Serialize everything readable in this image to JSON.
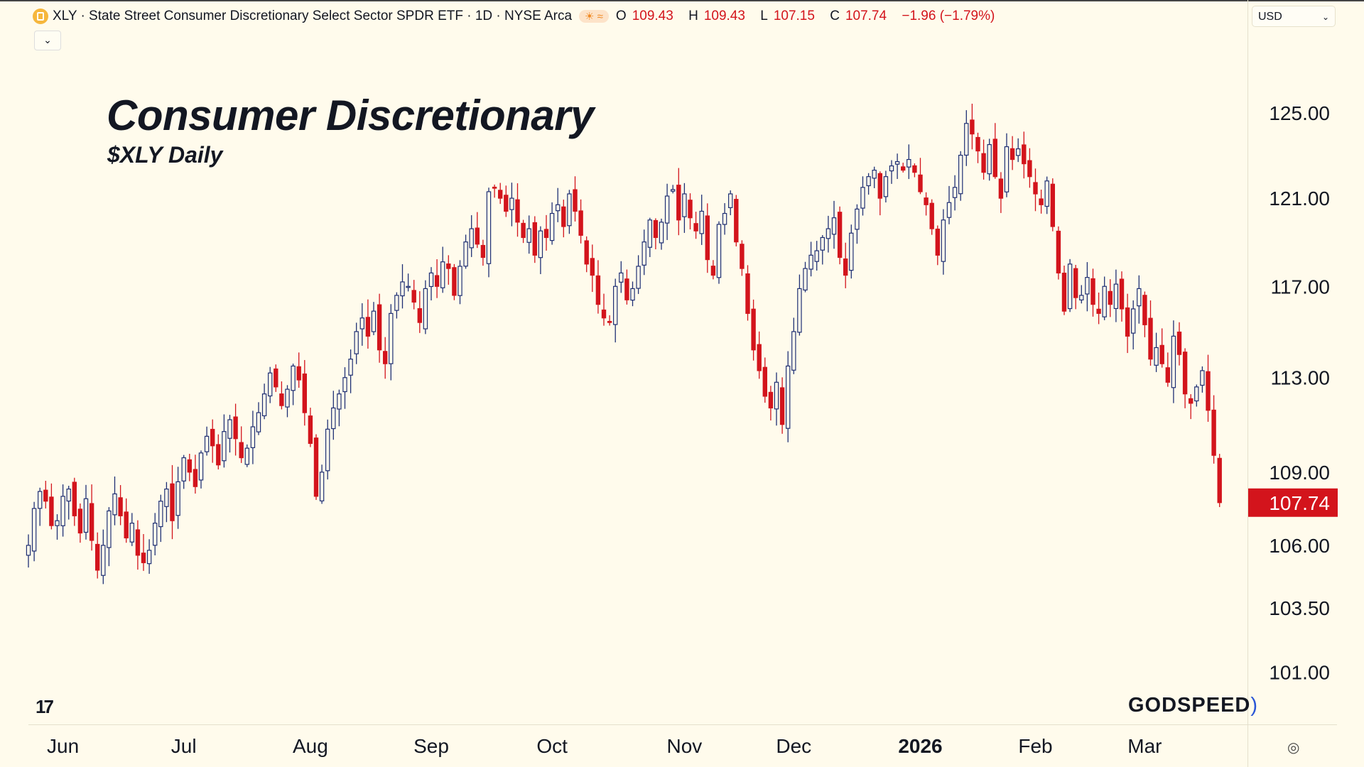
{
  "header": {
    "symbol_line": "XLY · State Street Consumer Discretionary Select Sector SPDR ETF · 1D · NYSE Arca",
    "market_status_icons": "☀ ≈",
    "open_label": "O",
    "open": "109.43",
    "high_label": "H",
    "high": "109.43",
    "low_label": "L",
    "low": "107.15",
    "close_label": "C",
    "close": "107.74",
    "change": "−1.96 (−1.79%)",
    "collapse_icon": "⌄",
    "currency": "USD",
    "currency_chevron": "⌄"
  },
  "overlay": {
    "title": "Consumer Discretionary",
    "subtitle": "$XLY Daily",
    "tv_logo": "17",
    "watermark": "GODSPEED",
    "watermark_arc": ")"
  },
  "settings_icon": "◎",
  "colors": {
    "up": "#1e2f74",
    "down": "#d3141c",
    "background": "#fffbec",
    "last_price_bg": "#d3141c"
  },
  "chart_data": {
    "type": "candlestick",
    "title": "Consumer Discretionary",
    "subtitle": "$XLY Daily",
    "scale": "log",
    "ylim": [
      99.5,
      128
    ],
    "price_ticks": [
      "125.00",
      "121.00",
      "117.00",
      "113.00",
      "109.00",
      "106.00",
      "103.50",
      "101.00"
    ],
    "last_price": "107.74",
    "month_labels": [
      {
        "label": "Jun",
        "index": 6
      },
      {
        "label": "Jul",
        "index": 27
      },
      {
        "label": "Aug",
        "index": 49
      },
      {
        "label": "Sep",
        "index": 70
      },
      {
        "label": "Oct",
        "index": 91
      },
      {
        "label": "Nov",
        "index": 114
      },
      {
        "label": "Dec",
        "index": 133
      },
      {
        "label": "2026",
        "index": 155,
        "bold": true
      },
      {
        "label": "Feb",
        "index": 175
      },
      {
        "label": "Mar",
        "index": 194
      }
    ],
    "closes": [
      106.0,
      107.5,
      108.2,
      107.8,
      106.8,
      107.0,
      108.0,
      108.3,
      107.2,
      106.5,
      107.9,
      106.2,
      105.0,
      106.0,
      107.4,
      108.1,
      107.2,
      106.3,
      106.9,
      105.6,
      105.3,
      105.8,
      106.9,
      107.8,
      108.3,
      107.0,
      108.6,
      109.6,
      109.0,
      108.4,
      109.8,
      110.5,
      110.1,
      109.3,
      110.7,
      111.2,
      110.4,
      109.6,
      110.0,
      110.9,
      111.5,
      112.3,
      113.2,
      112.6,
      111.8,
      112.5,
      113.5,
      112.9,
      111.5,
      110.2,
      108.0,
      109.0,
      110.8,
      111.7,
      112.3,
      113.0,
      113.8,
      115.0,
      115.6,
      114.8,
      115.9,
      114.2,
      113.6,
      115.8,
      116.6,
      117.2,
      117.0,
      116.3,
      115.4,
      116.9,
      117.6,
      117.0,
      118.1,
      117.8,
      116.6,
      117.9,
      119.0,
      119.6,
      118.9,
      118.3,
      121.3,
      121.5,
      121.0,
      120.4,
      121.0,
      119.9,
      119.2,
      119.6,
      118.4,
      119.5,
      119.2,
      120.3,
      120.7,
      119.7,
      121.2,
      120.4,
      119.3,
      118.0,
      117.5,
      116.2,
      115.6,
      115.4,
      117.0,
      117.6,
      116.4,
      116.9,
      117.9,
      119.0,
      120.0,
      119.2,
      119.9,
      121.1,
      121.4,
      120.0,
      121.2,
      120.1,
      119.5,
      120.4,
      118.2,
      117.5,
      119.8,
      120.3,
      121.2,
      119.0,
      117.8,
      115.8,
      114.2,
      113.3,
      112.2,
      111.7,
      112.8,
      111.0,
      113.5,
      115.0,
      116.9,
      117.8,
      118.4,
      118.6,
      119.2,
      119.6,
      120.1,
      118.3,
      117.5,
      119.4,
      120.5,
      121.5,
      122.0,
      122.3,
      121.0,
      122.0,
      122.5,
      122.7,
      122.3,
      122.8,
      122.2,
      121.3,
      120.7,
      119.6,
      118.4,
      120.0,
      120.8,
      121.5,
      123.0,
      124.5,
      124.0,
      123.2,
      122.2,
      123.5,
      122.0,
      121.0,
      123.4,
      122.8,
      123.3,
      122.6,
      122.0,
      121.2,
      120.7,
      121.8,
      119.7,
      117.6,
      115.9,
      118.0,
      116.5,
      116.6,
      117.4,
      116.2,
      115.8,
      117.0,
      116.2,
      117.1,
      116.0,
      114.8,
      116.0,
      116.9,
      115.3,
      113.8,
      114.3,
      113.6,
      112.8,
      114.8,
      114.0,
      112.3,
      111.9,
      112.6,
      113.3,
      111.6,
      109.7,
      107.74
    ]
  }
}
